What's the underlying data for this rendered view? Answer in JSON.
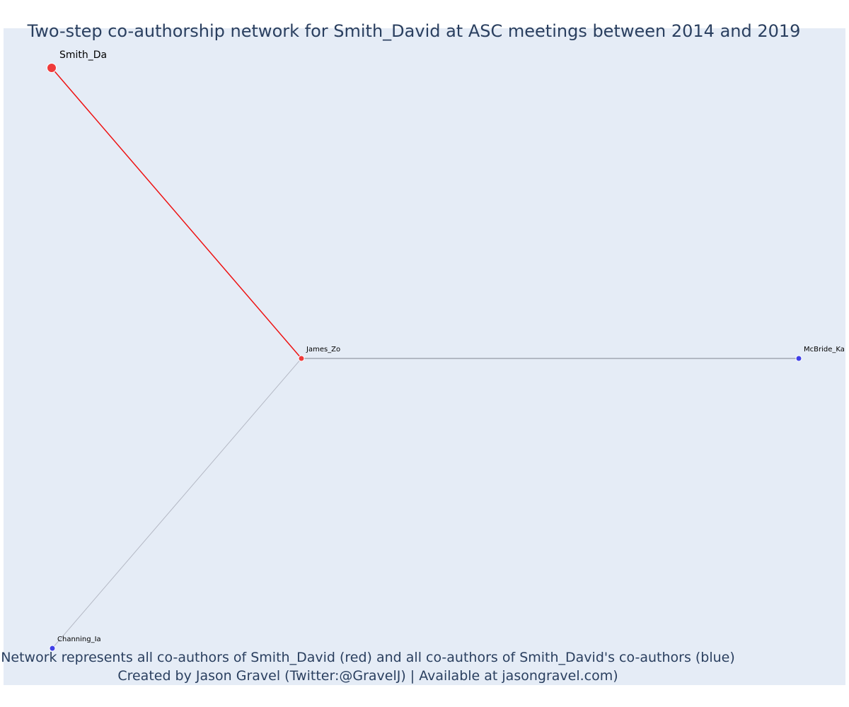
{
  "title": "Two-step co-authorship network for Smith_David at ASC meetings between 2014 and 2019",
  "caption": {
    "line1": "Network represents all co-authors of Smith_David (red) and all co-authors of Smith_David's co-authors (blue)",
    "line2": "Created by Jason Gravel (Twitter:@GravelJ) | Available at jasongravel.com)"
  },
  "colors": {
    "focal": "#ef3b3b",
    "coauthor": "#ef3b3b",
    "second_step": "#4040e8",
    "focal_edge": "#ee1111",
    "edge_dark": "#7f8590",
    "edge_light": "#b4b8c4",
    "background": "#e5ecf6",
    "text": "#2a3f5f"
  },
  "nodes": [
    {
      "id": "Smith_Da",
      "label": "Smith_Da",
      "group": "focal"
    },
    {
      "id": "James_Zo",
      "label": "James_Zo",
      "group": "coauthor"
    },
    {
      "id": "McBride_Ka",
      "label": "McBride_Ka",
      "group": "second_step"
    },
    {
      "id": "Channing_Ia",
      "label": "Channing_Ia",
      "group": "second_step"
    }
  ],
  "edges": [
    {
      "source": "Smith_Da",
      "target": "James_Zo",
      "style": "focal_edge"
    },
    {
      "source": "James_Zo",
      "target": "McBride_Ka",
      "style": "edge_dark"
    },
    {
      "source": "James_Zo",
      "target": "Channing_Ia",
      "style": "edge_light"
    }
  ]
}
